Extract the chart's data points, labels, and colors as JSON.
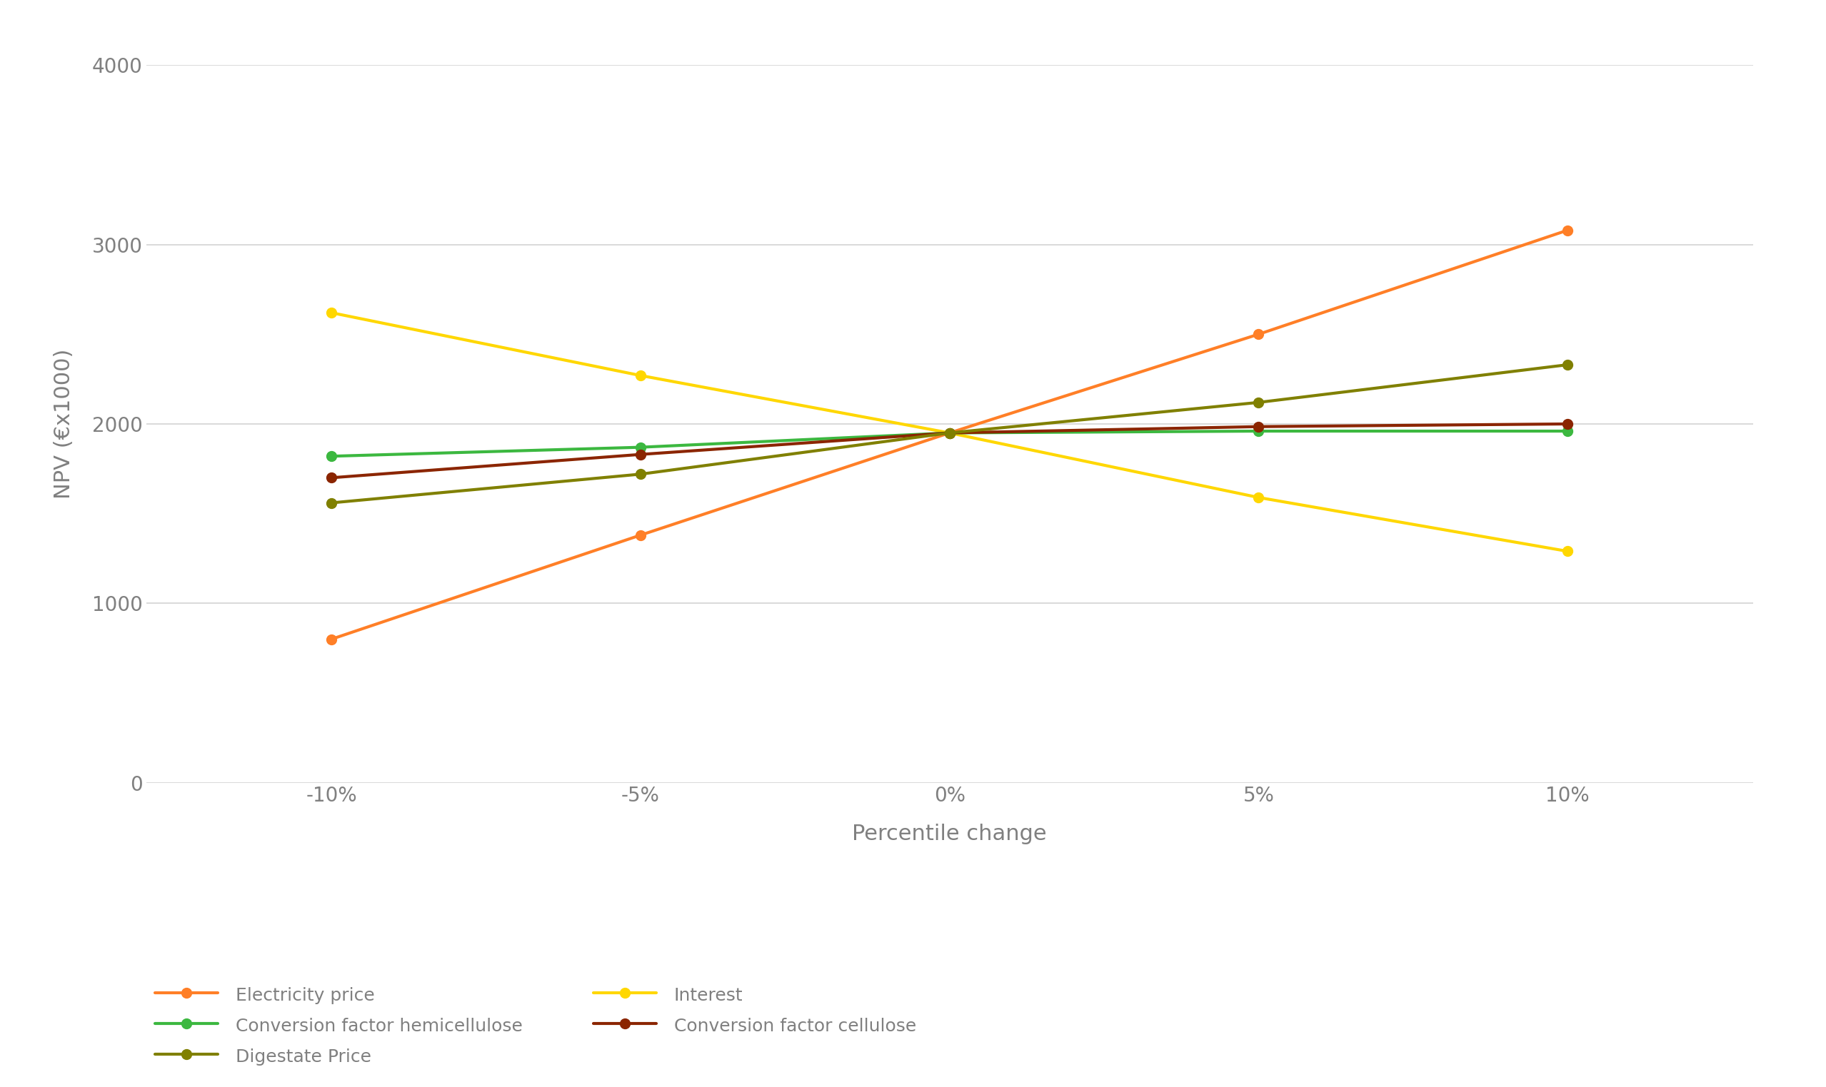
{
  "x_labels": [
    "-10%",
    "-5%",
    "0%",
    "5%",
    "10%"
  ],
  "x_values": [
    -10,
    -5,
    0,
    5,
    10
  ],
  "series": [
    {
      "name": "Electricity price",
      "color": "#FF7F27",
      "values": [
        800,
        1380,
        1950,
        2500,
        3080
      ],
      "linewidth": 3.0,
      "markersize": 10
    },
    {
      "name": "Interest",
      "color": "#FFD700",
      "values": [
        2620,
        2270,
        1950,
        1590,
        1290
      ],
      "linewidth": 3.0,
      "markersize": 10
    },
    {
      "name": "Conversion factor hemicellulose",
      "color": "#3CB840",
      "values": [
        1820,
        1870,
        1950,
        1960,
        1960
      ],
      "linewidth": 3.0,
      "markersize": 10
    },
    {
      "name": "Conversion factor cellulose",
      "color": "#8B2500",
      "values": [
        1700,
        1830,
        1950,
        1985,
        2000
      ],
      "linewidth": 3.0,
      "markersize": 10
    },
    {
      "name": "Digestate Price",
      "color": "#808000",
      "values": [
        1560,
        1720,
        1950,
        2120,
        2330
      ],
      "linewidth": 3.0,
      "markersize": 10
    }
  ],
  "ylabel": "NPV (€x1000)",
  "xlabel": "Percentile change",
  "ylim": [
    0,
    4000
  ],
  "yticks": [
    0,
    1000,
    2000,
    3000,
    4000
  ],
  "background_color": "#FFFFFF",
  "grid_color": "#D3D3D3",
  "label_fontsize": 22,
  "tick_fontsize": 20,
  "legend_fontsize": 18
}
